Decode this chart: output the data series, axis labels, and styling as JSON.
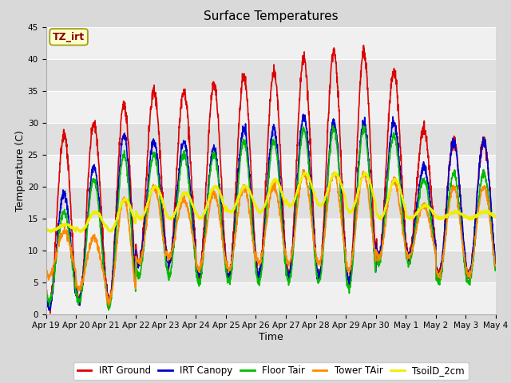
{
  "title": "Surface Temperatures",
  "xlabel": "Time",
  "ylabel": "Temperature (C)",
  "ylim": [
    0,
    45
  ],
  "n_days": 15,
  "xtick_labels": [
    "Apr 19",
    "Apr 20",
    "Apr 21",
    "Apr 22",
    "Apr 23",
    "Apr 24",
    "Apr 25",
    "Apr 26",
    "Apr 27",
    "Apr 28",
    "Apr 29",
    "Apr 30",
    "May 1",
    "May 2",
    "May 3",
    "May 4"
  ],
  "annotation_text": "TZ_irt",
  "annotation_color": "#880000",
  "annotation_bg": "#ffffcc",
  "annotation_border": "#999900",
  "series": [
    {
      "label": "IRT Ground",
      "color": "#dd0000",
      "lw": 1.2
    },
    {
      "label": "IRT Canopy",
      "color": "#0000cc",
      "lw": 1.2
    },
    {
      "label": "Floor Tair",
      "color": "#00bb00",
      "lw": 1.2
    },
    {
      "label": "Tower TAir",
      "color": "#ff8800",
      "lw": 1.2
    },
    {
      "label": "TsoilD_2cm",
      "color": "#eeee00",
      "lw": 1.8
    }
  ],
  "background_color": "#d9d9d9",
  "plot_bg_light": "#f0f0f0",
  "plot_bg_dark": "#e0e0e0",
  "title_fontsize": 11,
  "axis_fontsize": 9,
  "tick_fontsize": 7.5,
  "legend_fontsize": 8.5,
  "peaks_ground": [
    28,
    30,
    33,
    35,
    35,
    36,
    37,
    38,
    40,
    41,
    41,
    38,
    29,
    27,
    27
  ],
  "mins_ground": [
    1,
    2,
    2,
    8,
    8,
    6,
    6,
    6,
    6,
    6,
    5,
    9,
    9,
    6,
    6
  ],
  "peaks_canopy": [
    19,
    23,
    28,
    27,
    27,
    26,
    29,
    29,
    31,
    30,
    30,
    30,
    23,
    27,
    27
  ],
  "mins_canopy": [
    1,
    2,
    2,
    8,
    8,
    6,
    6,
    6,
    6,
    6,
    5,
    9,
    9,
    6,
    6
  ],
  "peaks_floor": [
    16,
    21,
    25,
    25,
    25,
    25,
    27,
    27,
    29,
    29,
    29,
    28,
    21,
    22,
    22
  ],
  "mins_floor": [
    2,
    2,
    1,
    6,
    6,
    5,
    5,
    5,
    5,
    5,
    4,
    8,
    8,
    5,
    5
  ],
  "peaks_tower": [
    13,
    12,
    18,
    20,
    18,
    19,
    20,
    20,
    22,
    22,
    22,
    21,
    17,
    20,
    20
  ],
  "mins_tower": [
    6,
    4,
    2,
    8,
    9,
    7,
    7,
    8,
    8,
    8,
    7,
    9,
    9,
    6,
    6
  ],
  "peaks_soil": [
    14,
    16,
    18,
    20,
    19,
    20,
    20,
    21,
    22,
    22,
    22,
    21,
    17,
    16,
    16
  ],
  "mins_soil": [
    13,
    13,
    13,
    15,
    15,
    15,
    16,
    16,
    17,
    17,
    16,
    15,
    15,
    15,
    15
  ]
}
